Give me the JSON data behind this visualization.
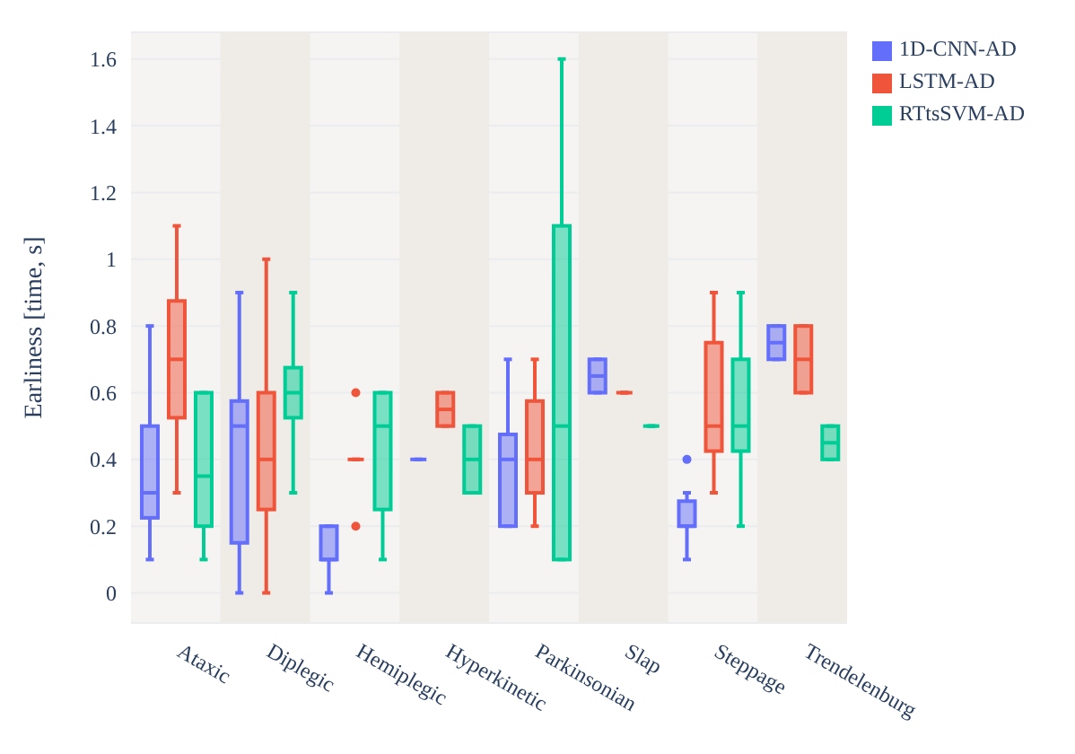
{
  "chart_data": {
    "type": "box",
    "ylabel": "Earliness [time, s]",
    "categories": [
      "Ataxic",
      "Diplegic",
      "Hemiplegic",
      "Hyperkinetic",
      "Parkinsonian",
      "Slap",
      "Steppage",
      "Trendelenburg"
    ],
    "series": [
      {
        "name": "1D-CNN-AD",
        "color": "#636efa",
        "boxes": [
          {
            "low": 0.1,
            "q1": 0.225,
            "median": 0.3,
            "q3": 0.5,
            "high": 0.8
          },
          {
            "low": 0,
            "q1": 0.15,
            "median": 0.5,
            "q3": 0.575,
            "high": 0.9
          },
          {
            "low": 0,
            "q1": 0.1,
            "median": 0.1,
            "q3": 0.2,
            "high": 0.2
          },
          {
            "low": 0.4,
            "q1": 0.4,
            "median": 0.4,
            "q3": 0.4,
            "high": 0.4
          },
          {
            "low": 0.2,
            "q1": 0.2,
            "median": 0.4,
            "q3": 0.475,
            "high": 0.7
          },
          {
            "low": 0.6,
            "q1": 0.6,
            "median": 0.65,
            "q3": 0.7,
            "high": 0.7
          },
          {
            "low": 0.1,
            "q1": 0.2,
            "median": 0.2,
            "q3": 0.275,
            "high": 0.3,
            "outliers": [
              0.4
            ]
          },
          {
            "low": 0.7,
            "q1": 0.7,
            "median": 0.75,
            "q3": 0.8,
            "high": 0.8
          }
        ]
      },
      {
        "name": "LSTM-AD",
        "color": "#ef553b",
        "boxes": [
          {
            "low": 0.3,
            "q1": 0.525,
            "median": 0.7,
            "q3": 0.875,
            "high": 1.1
          },
          {
            "low": 0,
            "q1": 0.25,
            "median": 0.4,
            "q3": 0.6,
            "high": 1.0
          },
          {
            "low": 0.4,
            "q1": 0.4,
            "median": 0.4,
            "q3": 0.4,
            "high": 0.4,
            "outliers": [
              0.6,
              0.2
            ]
          },
          {
            "low": 0.5,
            "q1": 0.5,
            "median": 0.55,
            "q3": 0.6,
            "high": 0.6
          },
          {
            "low": 0.2,
            "q1": 0.3,
            "median": 0.4,
            "q3": 0.575,
            "high": 0.7
          },
          {
            "low": 0.6,
            "q1": 0.6,
            "median": 0.6,
            "q3": 0.6,
            "high": 0.6
          },
          {
            "low": 0.3,
            "q1": 0.425,
            "median": 0.5,
            "q3": 0.75,
            "high": 0.9
          },
          {
            "low": 0.6,
            "q1": 0.6,
            "median": 0.7,
            "q3": 0.8,
            "high": 0.8
          }
        ]
      },
      {
        "name": "RTtsSVM-AD",
        "color": "#00cc96",
        "boxes": [
          {
            "low": 0.1,
            "q1": 0.2,
            "median": 0.35,
            "q3": 0.6,
            "high": 0.6
          },
          {
            "low": 0.3,
            "q1": 0.525,
            "median": 0.6,
            "q3": 0.675,
            "high": 0.9
          },
          {
            "low": 0.1,
            "q1": 0.25,
            "median": 0.5,
            "q3": 0.6,
            "high": 0.6
          },
          {
            "low": 0.3,
            "q1": 0.3,
            "median": 0.4,
            "q3": 0.5,
            "high": 0.5
          },
          {
            "low": 0.1,
            "q1": 0.1,
            "median": 0.5,
            "q3": 1.1,
            "high": 1.6
          },
          {
            "low": 0.5,
            "q1": 0.5,
            "median": 0.5,
            "q3": 0.5,
            "high": 0.5
          },
          {
            "low": 0.2,
            "q1": 0.425,
            "median": 0.5,
            "q3": 0.7,
            "high": 0.9
          },
          {
            "low": 0.4,
            "q1": 0.4,
            "median": 0.45,
            "q3": 0.5,
            "high": 0.5
          }
        ]
      }
    ],
    "ylim": [
      -0.09,
      1.68
    ],
    "yticks": [
      0,
      0.2,
      0.4,
      0.6,
      0.8,
      1,
      1.2,
      1.4,
      1.6
    ],
    "bands": [
      {
        "axis": "x",
        "from": "Diplegic",
        "to": "Diplegic",
        "color": "#efebe6"
      },
      {
        "axis": "x",
        "from": "Hyperkinetic",
        "to": "Hyperkinetic",
        "color": "#efebe6"
      },
      {
        "axis": "x",
        "from": "Slap",
        "to": "Slap",
        "color": "#efebe6"
      },
      {
        "axis": "x",
        "from": "Trendelenburg",
        "to": "Trendelenburg",
        "color": "#efebe6"
      }
    ],
    "grid": "y",
    "legend": "top right"
  }
}
